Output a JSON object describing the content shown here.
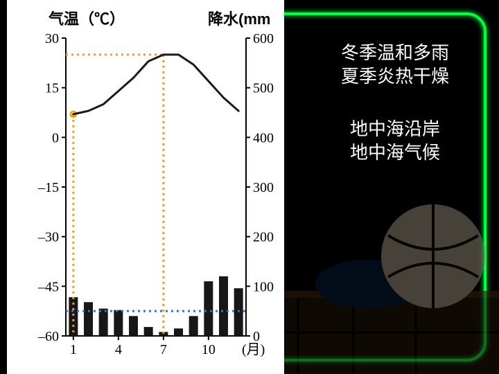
{
  "chart": {
    "type": "combined-line-bar",
    "left_axis": {
      "title": "气温（℃）",
      "min": -60,
      "max": 30,
      "tick_step": 15,
      "ticks": [
        30,
        15,
        0,
        -15,
        -30,
        -45,
        -60
      ]
    },
    "right_axis": {
      "title": "降水(mm",
      "min": 0,
      "max": 600,
      "tick_step": 100,
      "ticks": [
        600,
        500,
        400,
        300,
        200,
        100,
        0
      ]
    },
    "x_axis": {
      "title": "(月)",
      "ticks": [
        1,
        4,
        7,
        10
      ]
    },
    "months": [
      1,
      2,
      3,
      4,
      5,
      6,
      7,
      8,
      9,
      10,
      11,
      12
    ],
    "temperature_values": [
      7,
      8,
      10,
      14,
      18,
      23,
      25,
      25,
      22,
      17,
      12,
      8
    ],
    "precip_values": [
      78,
      68,
      55,
      52,
      40,
      18,
      8,
      15,
      40,
      110,
      120,
      96
    ],
    "line_color": "#1a1a1a",
    "line_width": 3,
    "bar_color": "#171717",
    "bar_width_ratio": 0.6,
    "grid_tick_color": "#000000",
    "background_color": "#ffffff",
    "label_fontsize": 20,
    "dotted_guide": {
      "color_orange": "#ff9900",
      "color_blue": "#1e72ff",
      "dash": "3,5",
      "orange_h_y_temp": 25,
      "orange_v_month_a": 1,
      "orange_v_month_b": 7,
      "blue_h_y_precip": 50
    }
  },
  "side_text": {
    "block1_line1": "冬季温和多雨",
    "block1_line2": "夏季炎热干燥",
    "block2_line1": "地中海沿岸",
    "block2_line2": "地中海气候"
  },
  "neon": {
    "color": "#00ff44"
  }
}
